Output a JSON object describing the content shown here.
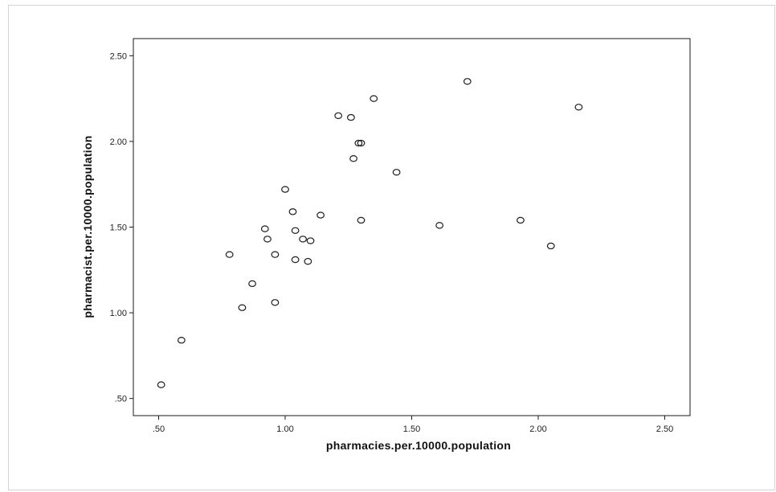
{
  "chart_data": {
    "type": "scatter",
    "xlabel": "pharmacies.per.10000.population",
    "ylabel": "pharmacist.per.10000.population",
    "xlim": [
      0.4,
      2.6
    ],
    "ylim": [
      0.4,
      2.6
    ],
    "x_ticks": [
      0.5,
      1.0,
      1.5,
      2.0,
      2.5
    ],
    "x_tick_labels": [
      ".50",
      "1.00",
      "1.50",
      "2.00",
      "2.50"
    ],
    "y_ticks": [
      0.5,
      1.0,
      1.5,
      2.0,
      2.5
    ],
    "y_tick_labels": [
      ".50",
      "1.00",
      "1.50",
      "2.00",
      "2.50"
    ],
    "grid": false,
    "marker": "hollow-circle",
    "points": [
      {
        "x": 0.51,
        "y": 0.58
      },
      {
        "x": 0.59,
        "y": 0.84
      },
      {
        "x": 0.78,
        "y": 1.34
      },
      {
        "x": 0.83,
        "y": 1.03
      },
      {
        "x": 0.87,
        "y": 1.17
      },
      {
        "x": 0.92,
        "y": 1.49
      },
      {
        "x": 0.93,
        "y": 1.43
      },
      {
        "x": 0.96,
        "y": 1.34
      },
      {
        "x": 0.96,
        "y": 1.06
      },
      {
        "x": 1.0,
        "y": 1.72
      },
      {
        "x": 1.03,
        "y": 1.59
      },
      {
        "x": 1.04,
        "y": 1.48
      },
      {
        "x": 1.04,
        "y": 1.31
      },
      {
        "x": 1.07,
        "y": 1.43
      },
      {
        "x": 1.09,
        "y": 1.3
      },
      {
        "x": 1.1,
        "y": 1.42
      },
      {
        "x": 1.14,
        "y": 1.57
      },
      {
        "x": 1.21,
        "y": 2.15
      },
      {
        "x": 1.26,
        "y": 2.14
      },
      {
        "x": 1.27,
        "y": 1.9
      },
      {
        "x": 1.29,
        "y": 1.99
      },
      {
        "x": 1.3,
        "y": 1.99
      },
      {
        "x": 1.3,
        "y": 1.54
      },
      {
        "x": 1.35,
        "y": 2.25
      },
      {
        "x": 1.44,
        "y": 1.82
      },
      {
        "x": 1.61,
        "y": 1.51
      },
      {
        "x": 1.72,
        "y": 2.35
      },
      {
        "x": 1.93,
        "y": 1.54
      },
      {
        "x": 2.05,
        "y": 1.39
      },
      {
        "x": 2.16,
        "y": 2.2
      }
    ]
  }
}
